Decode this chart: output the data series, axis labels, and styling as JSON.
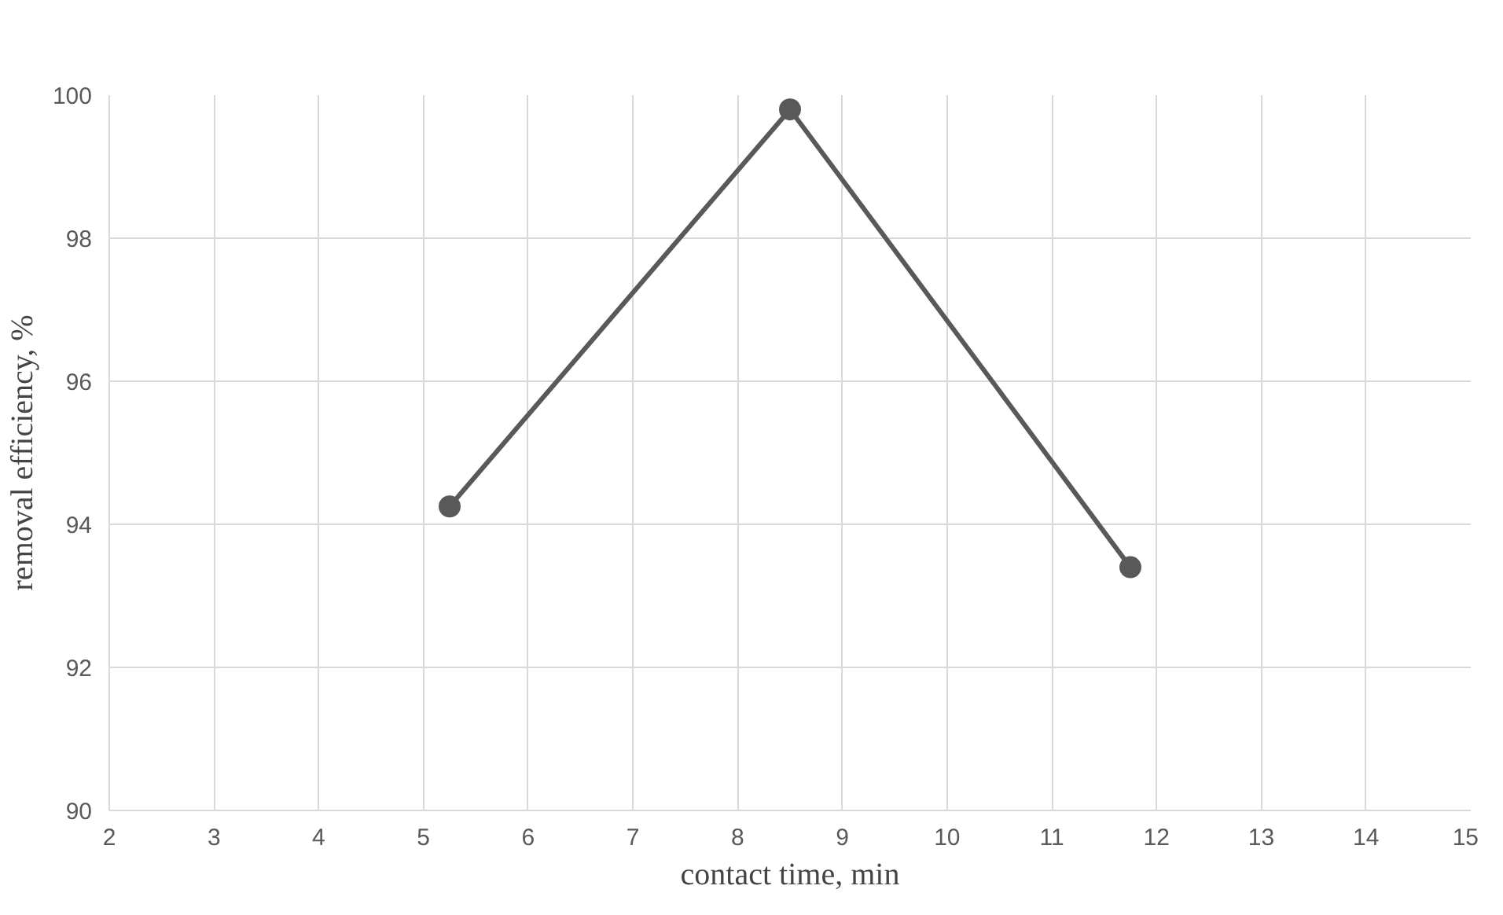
{
  "chart_data": {
    "type": "line",
    "xlabel": "contact time, min",
    "ylabel": "removal efficiency, %",
    "x": [
      5.25,
      8.5,
      11.75
    ],
    "series": [
      {
        "color": "#595959",
        "values": [
          94.25,
          99.8,
          93.4
        ]
      }
    ],
    "xlim": [
      2,
      15
    ],
    "xticks": [
      2,
      3,
      4,
      5,
      6,
      7,
      8,
      9,
      10,
      11,
      12,
      13,
      14,
      15
    ],
    "ylim": [
      90,
      100
    ],
    "yticks": [
      90,
      92,
      94,
      96,
      98,
      100
    ],
    "grid": true,
    "marker": "circle",
    "line_style": "solid"
  }
}
